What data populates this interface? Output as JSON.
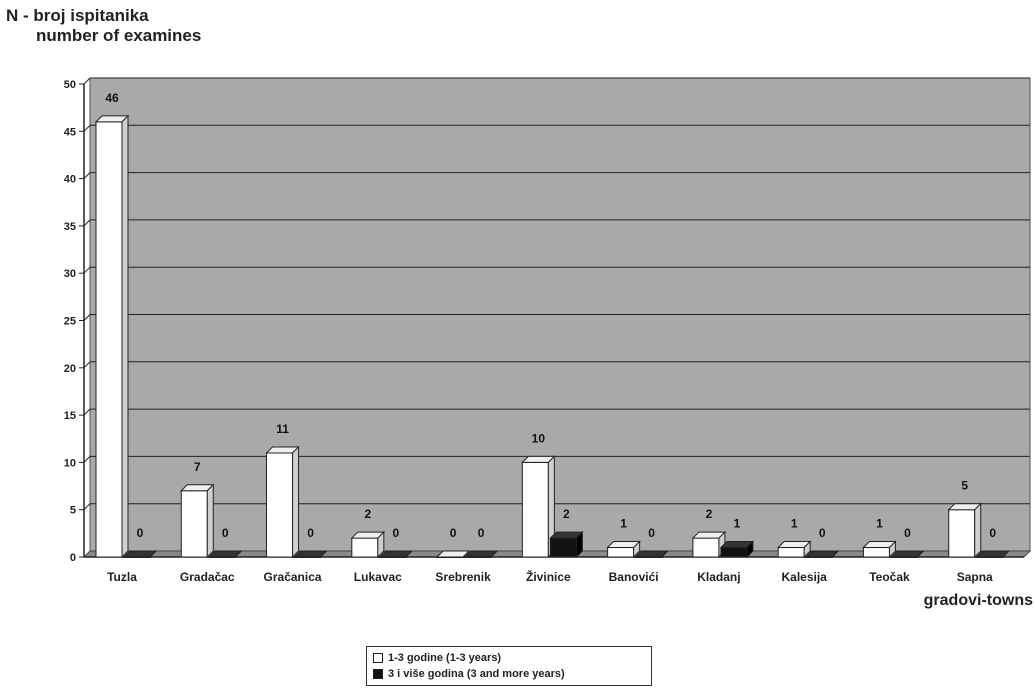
{
  "chart_data": {
    "type": "bar",
    "ylabel_line1": "N - broj ispitanika",
    "ylabel_line2": "number of examines",
    "xlabel": "gradovi-towns",
    "ylim": [
      0,
      50
    ],
    "yticks": [
      0,
      5,
      10,
      15,
      20,
      25,
      30,
      35,
      40,
      45,
      50
    ],
    "grid": true,
    "legend_position": "bottom-center",
    "categories": [
      "Tuzla",
      "Gradačac",
      "Gračanica",
      "Lukavac",
      "Srebrenik",
      "Živinice",
      "Banovići",
      "Kladanj",
      "Kalesija",
      "Teočak",
      "Sapna"
    ],
    "series": [
      {
        "name": "1-3 godine (1-3 years)",
        "color": "#ffffff",
        "values": [
          46,
          7,
          11,
          2,
          0,
          10,
          1,
          2,
          1,
          1,
          5
        ]
      },
      {
        "name": "3 i više godina (3 and more years)",
        "color": "#111111",
        "values": [
          0,
          0,
          0,
          0,
          0,
          2,
          0,
          1,
          0,
          0,
          0
        ]
      }
    ],
    "plot_background": "#a9a9a9"
  }
}
